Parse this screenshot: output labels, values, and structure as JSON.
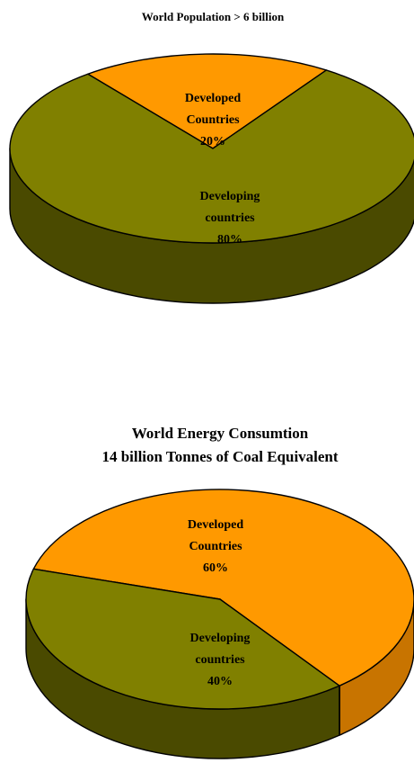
{
  "chart_data": [
    {
      "type": "pie",
      "style": "3d",
      "title": "World Population > 6 billion",
      "subtitle": "",
      "categories": [
        "Developed Countries",
        "Developing countries"
      ],
      "values": [
        20,
        80
      ],
      "unit": "%",
      "colors": {
        "top": [
          "#FF9900",
          "#808000"
        ],
        "side": [
          "#C87400",
          "#4A4A00"
        ]
      },
      "slices": [
        {
          "name": "Developed Countries",
          "value": 20,
          "lines": [
            "Developed",
            "Countries",
            "20%"
          ]
        },
        {
          "name": "Developing countries",
          "value": 80,
          "lines": [
            "Developing",
            "countries",
            "80%"
          ]
        }
      ]
    },
    {
      "type": "pie",
      "style": "3d",
      "title": "World Energy Consumtion",
      "subtitle": "14 billion Tonnes of Coal Equivalent",
      "categories": [
        "Developed Countries",
        "Developing countries"
      ],
      "values": [
        60,
        40
      ],
      "unit": "%",
      "colors": {
        "top": [
          "#FF9900",
          "#808000"
        ],
        "side": [
          "#C87400",
          "#4A4A00"
        ]
      },
      "slices": [
        {
          "name": "Developed Countries",
          "value": 60,
          "lines": [
            "Developed",
            "Countries",
            "60%"
          ]
        },
        {
          "name": "Developing countries",
          "value": 40,
          "lines": [
            "Developing",
            "countries",
            "40%"
          ]
        }
      ]
    }
  ]
}
